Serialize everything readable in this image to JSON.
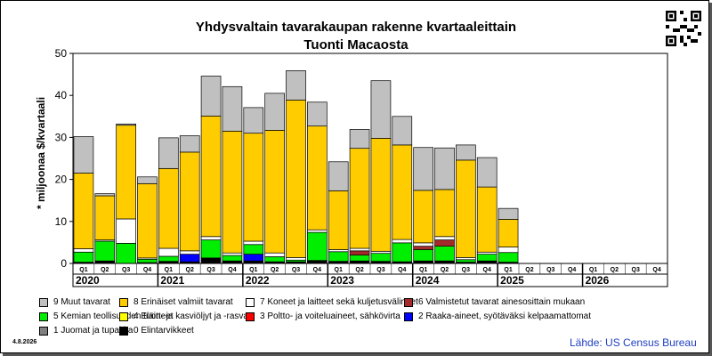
{
  "title_line1": "Yhdysvaltain tavarakaupan rakenne kvartaaleittain",
  "title_line2": "Tuonti Macaosta",
  "date": "4.8.2026",
  "source": "Lähde: US Census Bureau",
  "chart_data": {
    "type": "bar",
    "stacked": true,
    "ylabel": "* miljoonaa $/kvartaali",
    "ylim": [
      0,
      50
    ],
    "yticks": [
      0,
      10,
      20,
      30,
      40,
      50
    ],
    "grid": false,
    "legend_position": "bottom",
    "categories": [
      "Q1",
      "Q2",
      "Q3",
      "Q4",
      "Q1",
      "Q2",
      "Q3",
      "Q4",
      "Q1",
      "Q2",
      "Q3",
      "Q4",
      "Q1",
      "Q2",
      "Q3",
      "Q4",
      "Q1",
      "Q2",
      "Q3",
      "Q4",
      "Q1",
      "Q2",
      "Q3",
      "Q4",
      "Q1",
      "Q2",
      "Q3",
      "Q4"
    ],
    "years": [
      "2020",
      "2021",
      "2022",
      "2023",
      "2024",
      "2025",
      "2026"
    ],
    "series": [
      {
        "name": "0 Elintarvikkeet",
        "color": "#000000",
        "values": [
          0.3,
          0.6,
          0,
          0.2,
          0.5,
          0.4,
          1.3,
          0.6,
          0.6,
          0.4,
          0.4,
          0.7,
          0.5,
          0.6,
          0.5,
          0.4,
          0.6,
          0.6,
          0.3,
          0.6,
          0.3,
          0,
          0,
          0,
          0,
          0,
          0,
          0
        ]
      },
      {
        "name": "1 Juomat ja tupakka",
        "color": "#808080",
        "values": [
          0,
          0,
          0,
          0,
          0,
          0,
          0,
          0,
          0,
          0,
          0,
          0,
          0,
          0,
          0,
          0,
          0,
          0,
          0,
          0,
          0,
          0,
          0,
          0,
          0,
          0,
          0,
          0
        ]
      },
      {
        "name": "2 Raaka-aineet, syötäväksi kelpaamattomat",
        "color": "#0000ff",
        "values": [
          0,
          0,
          0,
          0,
          0,
          1.8,
          0,
          0,
          1.6,
          0,
          0,
          0,
          0,
          0,
          0,
          0,
          0,
          0,
          0,
          0,
          0,
          0,
          0,
          0,
          0,
          0,
          0,
          0
        ]
      },
      {
        "name": "3 Poltto- ja voiteluaineet, sähkövirta",
        "color": "#ff0000",
        "values": [
          0,
          0,
          0,
          0,
          0,
          0,
          0,
          0,
          0,
          0,
          0,
          0,
          0,
          0,
          0,
          0,
          0,
          0,
          0,
          0,
          0,
          0,
          0,
          0,
          0,
          0,
          0,
          0
        ]
      },
      {
        "name": "4 Eläin- ja kasviöljyt ja -rasvat",
        "color": "#ffff00",
        "values": [
          0,
          0,
          0,
          0,
          0,
          0,
          0,
          0,
          0,
          0,
          0,
          0,
          0,
          0,
          0,
          0,
          0,
          0,
          0,
          0,
          0,
          0,
          0,
          0,
          0,
          0,
          0,
          0
        ]
      },
      {
        "name": "5 Kemian teollisuuden tuotteet",
        "color": "#00ee00",
        "values": [
          2.4,
          4.7,
          4.8,
          0.8,
          1.2,
          0,
          4.3,
          1.3,
          2.3,
          1.2,
          0.4,
          6.7,
          2.3,
          1.4,
          1.9,
          4.5,
          2.7,
          3.5,
          0.6,
          1.6,
          2.3,
          0,
          0,
          0,
          0,
          0,
          0,
          0
        ]
      },
      {
        "name": "6 Valmistetut tavarat ainesosittain",
        "color": "#a52a2a",
        "values": [
          0,
          0,
          0,
          0,
          0,
          0,
          0,
          0,
          0,
          0,
          0,
          0,
          0,
          1,
          0,
          0,
          0.8,
          1.5,
          0,
          0,
          0,
          0,
          0,
          0,
          0,
          0,
          0,
          0
        ]
      },
      {
        "name": "7 Koneet ja laitteet sekä kuljetusvälineet",
        "color": "#ffffff",
        "values": [
          0.8,
          0.3,
          5.8,
          0.3,
          1.9,
          0.8,
          0.8,
          0.6,
          0.8,
          0.9,
          0.6,
          0.6,
          0.5,
          0.6,
          0.5,
          0.8,
          0.8,
          0.8,
          0.5,
          0.5,
          1.3,
          0,
          0,
          0,
          0,
          0,
          0,
          0
        ]
      },
      {
        "name": "8 Erinäiset valmiit tavarat",
        "color": "#ffcc00",
        "values": [
          18,
          10.5,
          22.3,
          17.7,
          19,
          23.5,
          28.7,
          29,
          25.7,
          29.2,
          37.5,
          24.7,
          14,
          23.8,
          26.9,
          22.5,
          12.5,
          11.2,
          23.2,
          15.5,
          6.6,
          0,
          0,
          0,
          0,
          0,
          0,
          0
        ]
      },
      {
        "name": "9 Muut tavarat",
        "color": "#c0c0c0",
        "values": [
          8.7,
          0.5,
          0.3,
          1.6,
          7.3,
          3.9,
          9.5,
          10.6,
          6.1,
          8.8,
          7,
          5.7,
          6.9,
          4.5,
          13.7,
          6.8,
          10.2,
          9.9,
          3.6,
          7,
          2.6,
          0,
          0,
          0,
          0,
          0,
          0,
          0
        ]
      }
    ]
  },
  "legend_items": [
    {
      "label": "9 Muut tavarat",
      "color": "#c0c0c0"
    },
    {
      "label": "8 Erinäiset valmiit tavarat",
      "color": "#ffcc00"
    },
    {
      "label": "7 Koneet ja laitteet sekä kuljetusvälineet",
      "color": "#ffffff"
    },
    {
      "label": "6 Valmistetut tavarat ainesosittain mukaan",
      "color": "#a52a2a"
    },
    {
      "label": "5 Kemian teollisuuden tuotteet",
      "color": "#00ee00"
    },
    {
      "label": "4 Eläin- ja kasviöljyt ja -rasvat",
      "color": "#ffff00"
    },
    {
      "label": "3 Poltto- ja voiteluaineet, sähkövirta",
      "color": "#ff0000"
    },
    {
      "label": "2 Raaka-aineet, syötäväksi kelpaamattomat",
      "color": "#0000ff"
    },
    {
      "label": "1 Juomat ja tupakka",
      "color": "#808080"
    },
    {
      "label": "0 Elintarvikkeet",
      "color": "#000000"
    }
  ]
}
